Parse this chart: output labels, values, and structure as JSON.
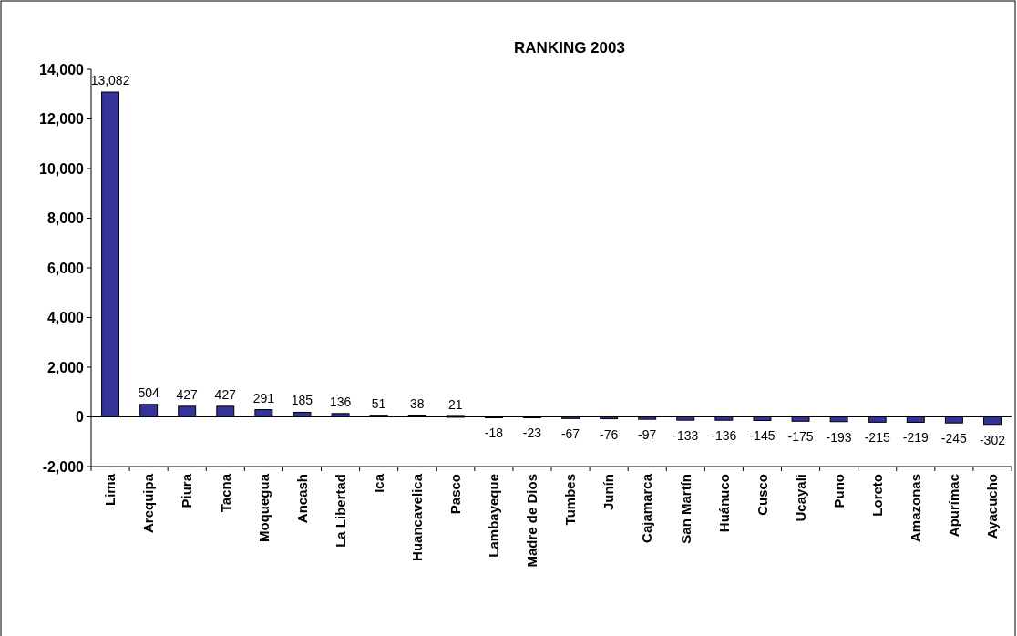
{
  "chart_data": {
    "type": "bar",
    "title": "RANKING 2003",
    "categories": [
      "Lima",
      "Arequipa",
      "Piura",
      "Tacna",
      "Moquegua",
      "Ancash",
      "La Libertad",
      "Ica",
      "Huancavelica",
      "Pasco",
      "Lambayeque",
      "Madre de Dios",
      "Tumbes",
      "Junín",
      "Cajamarca",
      "San Martín",
      "Huánuco",
      "Cusco",
      "Ucayali",
      "Puno",
      "Loreto",
      "Amazonas",
      "Apurímac",
      "Ayacucho"
    ],
    "values": [
      13082,
      504,
      427,
      427,
      291,
      185,
      136,
      51,
      38,
      21,
      -18,
      -23,
      -67,
      -76,
      -97,
      -133,
      -136,
      -145,
      -175,
      -193,
      -215,
      -219,
      -245,
      -302
    ],
    "color": "#333399",
    "ylim": [
      -2000,
      14000
    ],
    "yticks": [
      {
        "value": -2000,
        "label": "-2,000"
      },
      0,
      {
        "value": 2000,
        "label": "2,000"
      },
      {
        "value": 4000,
        "label": "4,000"
      },
      {
        "value": 6000,
        "label": "6,000"
      },
      {
        "value": 8000,
        "label": "8,000"
      },
      {
        "value": 10000,
        "label": "10,000"
      },
      {
        "value": 12000,
        "label": "12,000"
      },
      {
        "value": 14000,
        "label": "14,000"
      }
    ],
    "value_labels": [
      "13,082",
      "504",
      "427",
      "427",
      "291",
      "185",
      "136",
      "51",
      "38",
      "21",
      "-18",
      "-23",
      "-67",
      "-76",
      "-97",
      "-133",
      "-136",
      "-145",
      "-175",
      "-193",
      "-215",
      "-219",
      "-245",
      "-302"
    ]
  }
}
